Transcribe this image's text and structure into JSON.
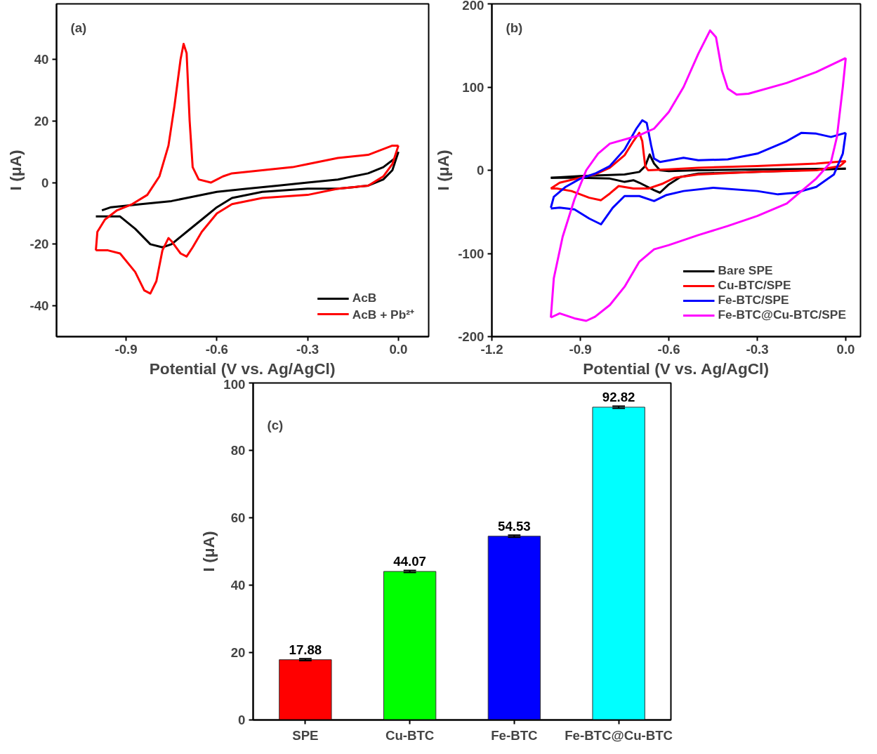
{
  "chart_data": [
    {
      "type": "line",
      "annotations": [
        "(a)"
      ],
      "xlabel": "Potential (V vs. Ag/AgCl)",
      "ylabel": "I (μA)",
      "xlim": [
        -1.13,
        0.1
      ],
      "xticks": [
        -0.9,
        -0.6,
        -0.3,
        {
          "value": 0,
          "label": "0.0"
        }
      ],
      "ylim": [
        -50,
        58
      ],
      "yticks": [
        -40,
        -20,
        0,
        20,
        40
      ],
      "grid": false,
      "legend": "bottom right",
      "line_style": "solid",
      "series": [
        {
          "name": "AcB",
          "color": "#000000",
          "x": [
            -0.98,
            -0.95,
            -0.85,
            -0.75,
            -0.7,
            -0.6,
            -0.5,
            -0.4,
            -0.3,
            -0.2,
            -0.1,
            -0.05,
            -0.01
          ],
          "values": [
            -9,
            -8,
            -7,
            -6,
            -5,
            -3,
            -2,
            -1,
            0,
            1,
            3,
            5,
            8
          ]
        },
        {
          "color": "#000000",
          "x": [
            0,
            -0.02,
            -0.05,
            -0.1,
            -0.2,
            -0.3,
            -0.45,
            -0.55,
            -0.6,
            -0.65,
            -0.7,
            -0.75,
            -0.78,
            -0.82,
            -0.87,
            -0.92,
            -0.97,
            -1.0
          ],
          "values": [
            10,
            4,
            1,
            -1,
            -2,
            -2,
            -3,
            -5,
            -8,
            -12,
            -16,
            -20,
            -21,
            -20,
            -15,
            -11,
            -11,
            -11
          ]
        },
        {
          "name": "AcB + Pb²⁺",
          "color": "#ff0000",
          "x": [
            -1.0,
            -0.995,
            -0.97,
            -0.93,
            -0.88,
            -0.83,
            -0.79,
            -0.76,
            -0.74,
            -0.72,
            -0.71,
            -0.7,
            -0.69,
            -0.68,
            -0.66,
            -0.62,
            -0.58,
            -0.55,
            -0.45,
            -0.35,
            -0.3,
            -0.2,
            -0.1,
            -0.02,
            0
          ],
          "values": [
            -22,
            -16,
            -12,
            -9,
            -7,
            -4,
            2,
            12,
            25,
            40,
            45,
            42,
            20,
            5,
            1,
            0,
            2,
            3,
            4,
            5,
            6,
            8,
            9,
            12,
            12
          ]
        },
        {
          "color": "#ff0000",
          "x": [
            0,
            -0.02,
            -0.05,
            -0.1,
            -0.2,
            -0.3,
            -0.45,
            -0.55,
            -0.6,
            -0.65,
            -0.68,
            -0.7,
            -0.72,
            -0.75,
            -0.76,
            -0.78,
            -0.8,
            -0.82,
            -0.84,
            -0.87,
            -0.92,
            -0.96,
            -1.0
          ],
          "values": [
            12,
            6,
            2,
            -1,
            -2,
            -4,
            -5,
            -7,
            -10,
            -16,
            -21,
            -24,
            -23,
            -19,
            -18,
            -22,
            -32,
            -36,
            -35,
            -29,
            -23,
            -22,
            -22
          ]
        }
      ]
    },
    {
      "type": "line",
      "annotations": [
        "(b)"
      ],
      "xlabel": "Potential (V vs. Ag/AgCl)",
      "ylabel": "I (μA)",
      "xlim": [
        -1.2,
        0.05
      ],
      "xticks": [
        -1.2,
        -0.9,
        -0.6,
        -0.3,
        {
          "value": 0,
          "label": "0.0"
        }
      ],
      "ylim": [
        -200,
        200
      ],
      "yticks": [
        -200,
        -100,
        0,
        100,
        200
      ],
      "grid": false,
      "legend": "bottom right",
      "line_style": "solid",
      "series": [
        {
          "name": "Bare SPE",
          "color": "#000000",
          "x": [
            -1,
            -0.9,
            -0.75,
            -0.7,
            -0.68,
            -0.665,
            -0.65,
            -0.63,
            -0.6,
            -0.5,
            -0.3,
            0
          ],
          "values": [
            -9,
            -7,
            -5,
            -2,
            5,
            19,
            8,
            0,
            -1,
            0,
            1,
            2
          ]
        },
        {
          "color": "#000000",
          "x": [
            0,
            -0.3,
            -0.5,
            -0.56,
            -0.6,
            -0.63,
            -0.65,
            -0.7,
            -0.72,
            -0.75,
            -0.8,
            -0.9,
            -1
          ],
          "values": [
            2,
            -2,
            -4,
            -8,
            -17,
            -27,
            -24,
            -15,
            -12,
            -14,
            -10,
            -9,
            -9
          ]
        },
        {
          "name": "Cu-BTC/SPE",
          "color": "#ff0000",
          "x": [
            -1,
            -0.97,
            -0.9,
            -0.85,
            -0.8,
            -0.75,
            -0.72,
            -0.7,
            -0.69,
            -0.68,
            -0.67,
            -0.6,
            -0.5,
            -0.3,
            -0.1,
            0
          ],
          "values": [
            -22,
            -15,
            -9,
            -5,
            3,
            18,
            35,
            45,
            35,
            5,
            0,
            1,
            3,
            5,
            8,
            11
          ]
        },
        {
          "color": "#ff0000",
          "x": [
            0,
            -0.02,
            -0.1,
            -0.3,
            -0.5,
            -0.58,
            -0.62,
            -0.67,
            -0.72,
            -0.77,
            -0.8,
            -0.83,
            -0.87,
            -0.93,
            -0.98,
            -1
          ],
          "values": [
            11,
            5,
            0,
            -2,
            -5,
            -9,
            -16,
            -22,
            -22,
            -19,
            -28,
            -36,
            -33,
            -25,
            -22,
            -22
          ]
        },
        {
          "name": "Fe-BTC/SPE",
          "color": "#0000ff",
          "x": [
            -1,
            -0.99,
            -0.95,
            -0.9,
            -0.85,
            -0.8,
            -0.75,
            -0.71,
            -0.69,
            -0.675,
            -0.66,
            -0.65,
            -0.63,
            -0.58,
            -0.55,
            -0.5,
            -0.4,
            -0.3,
            -0.2,
            -0.15,
            -0.1,
            -0.05,
            0
          ],
          "values": [
            -45,
            -32,
            -20,
            -10,
            -4,
            5,
            25,
            50,
            60,
            57,
            30,
            14,
            10,
            13,
            15,
            12,
            13,
            20,
            35,
            45,
            44,
            40,
            45
          ]
        },
        {
          "color": "#0000ff",
          "x": [
            0,
            -0.01,
            -0.04,
            -0.1,
            -0.17,
            -0.23,
            -0.3,
            -0.45,
            -0.55,
            -0.61,
            -0.65,
            -0.7,
            -0.75,
            -0.79,
            -0.83,
            -0.87,
            -0.92,
            -0.97,
            -1
          ],
          "values": [
            45,
            20,
            -5,
            -20,
            -27,
            -29,
            -25,
            -21,
            -25,
            -30,
            -37,
            -31,
            -31,
            -45,
            -65,
            -58,
            -47,
            -45,
            -46
          ]
        },
        {
          "name": "Fe-BTC@Cu-BTC/SPE",
          "color": "#ff00ff",
          "x": [
            -1,
            -0.99,
            -0.96,
            -0.92,
            -0.88,
            -0.84,
            -0.8,
            -0.7,
            -0.65,
            -0.6,
            -0.55,
            -0.5,
            -0.46,
            -0.44,
            -0.42,
            -0.4,
            -0.37,
            -0.33,
            -0.2,
            -0.1,
            0
          ],
          "values": [
            -177,
            -130,
            -80,
            -35,
            0,
            20,
            32,
            42,
            50,
            70,
            100,
            140,
            168,
            160,
            120,
            98,
            91,
            92,
            105,
            118,
            135
          ]
        },
        {
          "color": "#ff00ff",
          "x": [
            0,
            -0.01,
            -0.03,
            -0.05,
            -0.1,
            -0.15,
            -0.2,
            -0.3,
            -0.4,
            -0.5,
            -0.6,
            -0.65,
            -0.7,
            -0.75,
            -0.8,
            -0.85,
            -0.88,
            -0.92,
            -0.97,
            -1
          ],
          "values": [
            135,
            100,
            40,
            10,
            -10,
            -25,
            -40,
            -55,
            -67,
            -78,
            -90,
            -95,
            -110,
            -140,
            -162,
            -176,
            -181,
            -178,
            -172,
            -177
          ]
        }
      ]
    },
    {
      "type": "bar",
      "annotations": [
        "(c)"
      ],
      "ylabel": "I (μA)",
      "categories": [
        "SPE",
        "Cu-BTC",
        "Fe-BTC",
        "Fe-BTC@Cu-BTC"
      ],
      "values": [
        17.88,
        44.07,
        54.53,
        92.82
      ],
      "colors": [
        "#ff0000",
        "#00ff00",
        "#0000ff",
        "#00ffff"
      ],
      "errors": [
        0.3,
        0.3,
        0.3,
        0.3
      ],
      "data_labels": true,
      "ylim": [
        0,
        100
      ],
      "yticks": [
        0,
        20,
        40,
        60,
        80,
        100
      ],
      "grid": false
    }
  ]
}
